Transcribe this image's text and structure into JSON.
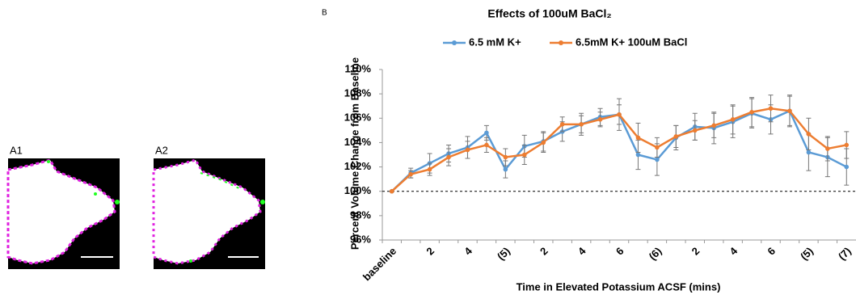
{
  "panels": {
    "a1": "A1",
    "a2": "A2",
    "b": "B"
  },
  "chart_data": {
    "type": "line",
    "title": "Effects of 100uM BaCl₂",
    "y_label": "Percent Volume Change from Baseline",
    "x_label": "Time in Elevated Potassium ACSF (mins)",
    "categories": [
      "baseline",
      null,
      "2",
      null,
      "4",
      null,
      "(5)",
      null,
      "2",
      null,
      "4",
      null,
      "6",
      null,
      "(6)",
      null,
      "2",
      null,
      "4",
      null,
      "6",
      null,
      "(5)",
      null,
      "(7)"
    ],
    "series": [
      {
        "name": "6.5 mM K+",
        "color": "#5b9bd5",
        "values": [
          100,
          101.5,
          102.3,
          103.1,
          103.6,
          104.8,
          101.8,
          103.7,
          104.1,
          104.9,
          105.5,
          106.1,
          106.3,
          103.0,
          102.6,
          104.4,
          105.3,
          105.2,
          105.7,
          106.4,
          105.9,
          106.6,
          103.2,
          102.8,
          102.0
        ],
        "errors": [
          0,
          0.4,
          0.8,
          0.7,
          0.9,
          0.6,
          0.7,
          0.9,
          0.8,
          0.8,
          0.9,
          0.7,
          1.3,
          1.2,
          1.3,
          1.0,
          1.1,
          1.3,
          1.3,
          1.2,
          1.2,
          1.3,
          1.5,
          1.6,
          1.5
        ]
      },
      {
        "name": "6.5mM K+ 100uM BaCl",
        "color": "#ed7d31",
        "values": [
          100,
          101.4,
          101.8,
          102.8,
          103.4,
          103.8,
          102.8,
          103.0,
          104.0,
          105.5,
          105.5,
          105.9,
          106.3,
          104.4,
          103.6,
          104.5,
          105.0,
          105.4,
          105.9,
          106.5,
          106.8,
          106.6,
          104.7,
          103.5,
          103.8
        ],
        "errors": [
          0,
          0.3,
          0.5,
          0.7,
          0.7,
          0.6,
          0.7,
          0.8,
          0.8,
          0.6,
          0.7,
          0.6,
          0.8,
          1.2,
          0.8,
          0.9,
          0.8,
          1.0,
          1.2,
          1.2,
          1.1,
          1.2,
          1.3,
          1.0,
          1.1
        ]
      }
    ],
    "ylim": [
      96,
      110
    ],
    "yticks": [
      {
        "value": 96,
        "label": "96%"
      },
      {
        "value": 98,
        "label": "98%"
      },
      {
        "value": 100,
        "label": "100%"
      },
      {
        "value": 102,
        "label": "102%"
      },
      {
        "value": 104,
        "label": "104%"
      },
      {
        "value": 106,
        "label": "106%"
      },
      {
        "value": 108,
        "label": "108%"
      },
      {
        "value": 110,
        "label": "110%"
      }
    ],
    "reference_line": 100,
    "grid": false,
    "legend": "top"
  }
}
